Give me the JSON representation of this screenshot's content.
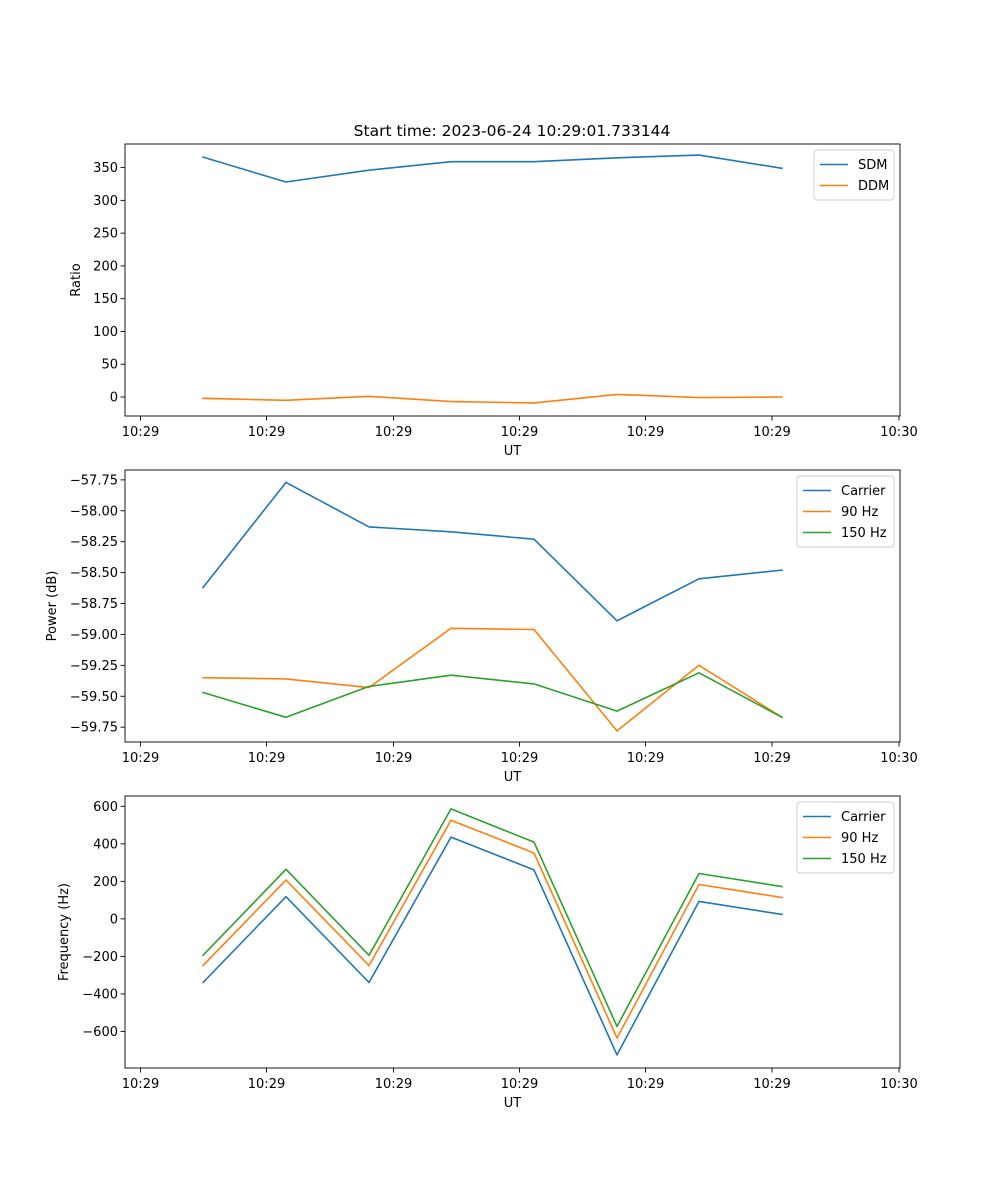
{
  "figure": {
    "title": "Start time: 2023-06-24 10:29:01.733144"
  },
  "chart_data": [
    {
      "type": "line",
      "title": "Start time: 2023-06-24 10:29:01.733144",
      "xlabel": "UT",
      "ylabel": "Ratio",
      "x_tick_labels": [
        "10:29",
        "10:29",
        "10:29",
        "10:29",
        "10:29",
        "10:29",
        "10:30"
      ],
      "y_ticks": [
        0,
        50,
        100,
        150,
        200,
        250,
        300,
        350
      ],
      "ylim": [
        -29,
        386
      ],
      "legend_position": "upper right",
      "series": [
        {
          "name": "SDM",
          "color": "#1f77b4",
          "values": [
            366,
            328,
            346,
            359,
            359,
            365,
            369,
            349
          ]
        },
        {
          "name": "DDM",
          "color": "#ff7f0e",
          "values": [
            -2,
            -5,
            1,
            -7,
            -9,
            4,
            -1,
            0
          ]
        }
      ]
    },
    {
      "type": "line",
      "xlabel": "UT",
      "ylabel": "Power (dB)",
      "x_tick_labels": [
        "10:29",
        "10:29",
        "10:29",
        "10:29",
        "10:29",
        "10:29",
        "10:30"
      ],
      "y_ticks": [
        -59.75,
        -59.5,
        -59.25,
        -59.0,
        -58.75,
        -58.5,
        -58.25,
        -58.0,
        -57.75
      ],
      "y_tick_labels": [
        "−59.75",
        "−59.50",
        "−59.25",
        "−59.00",
        "−58.75",
        "−58.50",
        "−58.25",
        "−58.00",
        "−57.75"
      ],
      "ylim": [
        -59.87,
        -57.67
      ],
      "legend_position": "upper right",
      "series": [
        {
          "name": "Carrier",
          "color": "#1f77b4",
          "values": [
            -58.62,
            -57.77,
            -58.13,
            -58.17,
            -58.23,
            -58.89,
            -58.55,
            -58.48
          ]
        },
        {
          "name": "90 Hz",
          "color": "#ff7f0e",
          "values": [
            -59.35,
            -59.36,
            -59.43,
            -58.95,
            -58.96,
            -59.78,
            -59.25,
            -59.67
          ]
        },
        {
          "name": "150 Hz",
          "color": "#2ca02c",
          "values": [
            -59.47,
            -59.67,
            -59.42,
            -59.33,
            -59.4,
            -59.62,
            -59.31,
            -59.67
          ]
        }
      ]
    },
    {
      "type": "line",
      "xlabel": "UT",
      "ylabel": "Frequency (Hz)",
      "x_tick_labels": [
        "10:29",
        "10:29",
        "10:29",
        "10:29",
        "10:29",
        "10:29",
        "10:30"
      ],
      "y_ticks": [
        -600,
        -400,
        -200,
        0,
        200,
        400,
        600
      ],
      "y_tick_labels": [
        "−600",
        "−400",
        "−200",
        "0",
        "200",
        "400",
        "600"
      ],
      "ylim": [
        -795,
        655
      ],
      "legend_position": "upper right",
      "series": [
        {
          "name": "Carrier",
          "color": "#1f77b4",
          "values": [
            -339,
            118,
            -339,
            436,
            261,
            -725,
            93,
            24
          ]
        },
        {
          "name": "90 Hz",
          "color": "#ff7f0e",
          "values": [
            -249,
            207,
            -249,
            526,
            351,
            -635,
            183,
            114
          ]
        },
        {
          "name": "150 Hz",
          "color": "#2ca02c",
          "values": [
            -194,
            264,
            -194,
            586,
            409,
            -573,
            242,
            172
          ]
        }
      ]
    }
  ]
}
